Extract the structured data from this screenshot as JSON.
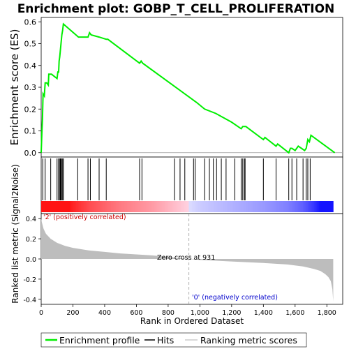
{
  "chart_data": {
    "type": "line",
    "title": "Enrichment plot: GOBP_T_CELL_PROLIFERATION",
    "enrichment_panel": {
      "ylabel": "Enrichment score (ES)",
      "ylim": [
        -0.02,
        0.62
      ],
      "yticks": [
        "0.0",
        "0.1",
        "0.2",
        "0.3",
        "0.4",
        "0.5",
        "0.6"
      ],
      "series": [
        {
          "name": "Enrichment profile",
          "color": "#00ee00",
          "x": [
            0,
            5,
            8,
            12,
            20,
            25,
            35,
            45,
            48,
            60,
            65,
            100,
            105,
            110,
            113,
            117,
            121,
            125,
            130,
            135,
            140,
            235,
            295,
            305,
            315,
            365,
            410,
            420,
            620,
            630,
            640,
            980,
            1030,
            1100,
            1200,
            1260,
            1270,
            1280,
            1290,
            1400,
            1410,
            1480,
            1490,
            1560,
            1570,
            1580,
            1600,
            1620,
            1640,
            1660,
            1670,
            1680,
            1690,
            1700,
            1850
          ],
          "y": [
            0.0,
            0.1,
            0.15,
            0.27,
            0.26,
            0.32,
            0.32,
            0.31,
            0.36,
            0.36,
            0.36,
            0.34,
            0.37,
            0.37,
            0.42,
            0.44,
            0.47,
            0.5,
            0.54,
            0.56,
            0.59,
            0.53,
            0.53,
            0.55,
            0.54,
            0.53,
            0.52,
            0.52,
            0.41,
            0.42,
            0.41,
            0.23,
            0.2,
            0.18,
            0.14,
            0.11,
            0.12,
            0.12,
            0.12,
            0.06,
            0.07,
            0.03,
            0.04,
            0.0,
            0.02,
            0.02,
            0.01,
            0.03,
            0.02,
            0.01,
            0.02,
            0.06,
            0.05,
            0.08,
            0.0
          ]
        }
      ]
    },
    "hits_panel": {
      "series_name": "Hits",
      "positions": [
        10,
        25,
        60,
        100,
        110,
        115,
        121,
        125,
        128,
        135,
        140,
        230,
        295,
        310,
        365,
        410,
        620,
        635,
        840,
        875,
        905,
        960,
        970,
        1030,
        1060,
        1085,
        1105,
        1135,
        1165,
        1220,
        1260,
        1270,
        1280,
        1285,
        1400,
        1480,
        1560,
        1580,
        1610,
        1650,
        1670,
        1680,
        1695
      ]
    },
    "ranking_panel": {
      "series_name": "Ranking metric scores",
      "ylabel": "Ranked list metric (Signal2Noise)",
      "ylim": [
        -0.45,
        0.45
      ],
      "yticks": [
        "0.4",
        "0.2",
        "0.0",
        "-0.2",
        "-0.4"
      ],
      "x": [
        0,
        5,
        15,
        30,
        60,
        100,
        150,
        200,
        300,
        400,
        500,
        600,
        700,
        800,
        931,
        1000,
        1200,
        1400,
        1550,
        1650,
        1720,
        1760,
        1790,
        1810,
        1825,
        1835,
        1840
      ],
      "y": [
        0.4,
        0.36,
        0.3,
        0.25,
        0.2,
        0.16,
        0.13,
        0.11,
        0.085,
        0.07,
        0.055,
        0.045,
        0.035,
        0.02,
        0.0,
        -0.01,
        -0.025,
        -0.04,
        -0.055,
        -0.075,
        -0.1,
        -0.12,
        -0.15,
        -0.18,
        -0.22,
        -0.3,
        -0.42
      ],
      "zero_cross_label": "Zero cross at 931",
      "zero_cross": 931,
      "pos_label": "'2' (positively correlated)",
      "neg_label": "'0' (negatively correlated)"
    },
    "xlabel": "Rank in Ordered Dataset",
    "xlim": [
      0,
      1900
    ],
    "xticks": [
      "0",
      "200",
      "400",
      "600",
      "800",
      "1,000",
      "1,200",
      "1,400",
      "1,600",
      "1,800"
    ],
    "legend": {
      "placement": "bottom",
      "entries": [
        "Enrichment profile",
        "Hits",
        "Ranking metric scores"
      ]
    }
  }
}
